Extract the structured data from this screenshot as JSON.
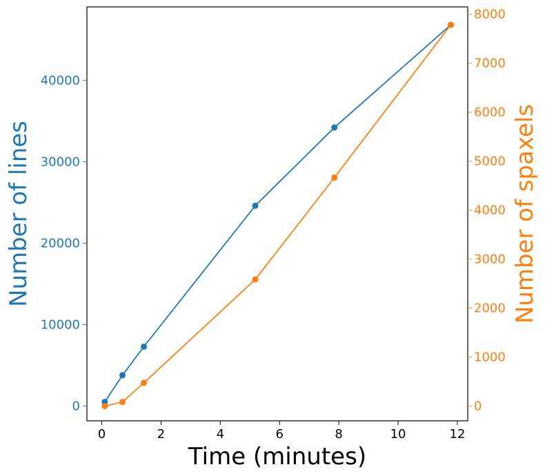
{
  "chart_data": {
    "type": "line",
    "title": "",
    "xlabel": "Time (minutes)",
    "ylabel_left": "Number of lines",
    "ylabel_right": "Number of spaxels",
    "xlim": [
      -0.5,
      12.35
    ],
    "ylim_left": [
      -1800,
      49000
    ],
    "ylim_right": [
      -300,
      8150
    ],
    "x_ticks": [
      0,
      2,
      4,
      6,
      8,
      10,
      12
    ],
    "y_left_ticks": [
      0,
      10000,
      20000,
      30000,
      40000
    ],
    "y_right_ticks": [
      0,
      1000,
      2000,
      3000,
      4000,
      5000,
      6000,
      7000,
      8000
    ],
    "grid": false,
    "legend": "none",
    "series": [
      {
        "axis": "left",
        "color": "#1f77b4",
        "x": [
          0.1,
          0.7,
          1.42,
          5.18,
          7.85,
          11.78
        ],
        "values": [
          500,
          3800,
          7300,
          24600,
          34200,
          46800
        ]
      },
      {
        "axis": "right",
        "color": "#ff7f0e",
        "x": [
          0.1,
          0.7,
          1.42,
          5.18,
          7.85,
          11.78
        ],
        "values": [
          0,
          85,
          475,
          2585,
          4665,
          7785
        ]
      }
    ]
  }
}
